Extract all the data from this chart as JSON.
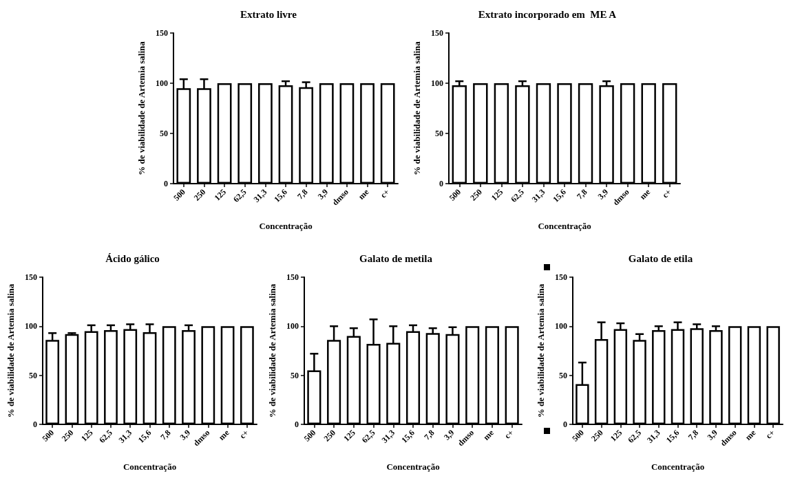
{
  "chart_data": [
    {
      "type": "bar",
      "title": "Extrato livre",
      "xlabel": "Concentração",
      "ylabel": "% de viabilidade de Artemia salina",
      "categories": [
        "500",
        "250",
        "125",
        "62,5",
        "31,3",
        "15,6",
        "7,8",
        "3,9",
        "dmso",
        "me",
        "c+"
      ],
      "values": [
        95,
        95,
        100,
        100,
        100,
        98,
        96,
        100,
        100,
        100,
        100
      ],
      "errors": [
        9,
        9,
        null,
        null,
        null,
        4,
        5,
        null,
        null,
        null,
        null
      ],
      "colors": [
        "#ffffff",
        "#ffffff",
        "#ffffff",
        "#ffffff",
        "#ffffff",
        "#ffffff",
        "#ffffff",
        "#ffffff",
        "#ffffff",
        "#ffffff",
        "#ffffff"
      ],
      "ylim": [
        0,
        150
      ],
      "yticks": [
        0,
        50,
        100,
        150
      ]
    },
    {
      "type": "bar",
      "title": "Extrato incorporado em  ME A",
      "xlabel": "Concentração",
      "ylabel": "% de viabilidade de Artemia salina",
      "categories": [
        "500",
        "250",
        "125",
        "62,5",
        "31,3",
        "15,6",
        "7,8",
        "3,9",
        "dmso",
        "me",
        "c+"
      ],
      "values": [
        98,
        100,
        100,
        98,
        100,
        100,
        100,
        98,
        100,
        100,
        100
      ],
      "errors": [
        4,
        null,
        null,
        4,
        null,
        null,
        null,
        4,
        null,
        null,
        null
      ],
      "colors": [
        "#ffffff",
        "#ffffff",
        "#ffffff",
        "#ffffff",
        "#ffffff",
        "#ffffff",
        "#ffffff",
        "#ffffff",
        "#ffffff",
        "#ffffff",
        "#ffffff"
      ],
      "ylim": [
        0,
        150
      ],
      "yticks": [
        0,
        50,
        100,
        150
      ]
    },
    {
      "type": "bar",
      "title": "Ácido gálico",
      "xlabel": "Concentração",
      "ylabel": "% de viabilidade de Artemia salina",
      "categories": [
        "500",
        "250",
        "125",
        "62,5",
        "31,3",
        "15,6",
        "7,8",
        "3,9",
        "dmso",
        "me",
        "c+"
      ],
      "values": [
        86,
        92,
        95,
        96,
        97,
        94,
        100,
        96,
        100,
        100,
        100
      ],
      "errors": [
        7,
        1,
        6,
        5,
        5,
        8,
        null,
        5,
        null,
        null,
        null
      ],
      "colors": [
        "#ffffff",
        "#ffffff",
        "#ffffff",
        "#ffffff",
        "#ffffff",
        "#ffffff",
        "#ffffff",
        "#ffffff",
        "#ffffff",
        "#ffffff",
        "#ffffff"
      ],
      "ylim": [
        0,
        150
      ],
      "yticks": [
        0,
        50,
        100,
        150
      ]
    },
    {
      "type": "bar",
      "title": "Galato de metila",
      "xlabel": "Concentração",
      "ylabel": "% de viabilidade de Artemia salina",
      "categories": [
        "500",
        "250",
        "125",
        "62,5",
        "31,3",
        "15,6",
        "7,8",
        "3,9",
        "dmso",
        "me",
        "c+"
      ],
      "values": [
        55,
        86,
        90,
        82,
        83,
        95,
        93,
        92,
        100,
        100,
        100
      ],
      "errors": [
        17,
        14,
        8,
        25,
        17,
        6,
        5,
        7,
        null,
        null,
        null
      ],
      "colors": [
        "#ffffff",
        "#ffffff",
        "#ffffff",
        "#ffffff",
        "#ffffff",
        "#ffffff",
        "#ffffff",
        "#ffffff",
        "#ffffff",
        "#ffffff",
        "#ffffff"
      ],
      "ylim": [
        0,
        150
      ],
      "yticks": [
        0,
        50,
        100,
        150
      ]
    },
    {
      "type": "bar",
      "title": "Galato de etila",
      "xlabel": "Concentração",
      "ylabel": "% de viabilidade de Artemia salina",
      "categories": [
        "500",
        "250",
        "125",
        "62,5",
        "31,3",
        "15,6",
        "7,8",
        "3,9",
        "dmso",
        "me",
        "c+"
      ],
      "values": [
        41,
        87,
        97,
        86,
        96,
        97,
        98,
        96,
        100,
        100,
        100
      ],
      "errors": [
        22,
        17,
        6,
        6,
        4,
        7,
        4,
        4,
        null,
        null,
        null
      ],
      "colors": [
        "#ffffff",
        "#ffffff",
        "#ffffff",
        "#ffffff",
        "#ffffff",
        "#ffffff",
        "#ffffff",
        "#ffffff",
        "#ffffff",
        "#ffffff",
        "#ffffff"
      ],
      "ylim": [
        0,
        150
      ],
      "yticks": [
        0,
        50,
        100,
        150
      ]
    }
  ]
}
